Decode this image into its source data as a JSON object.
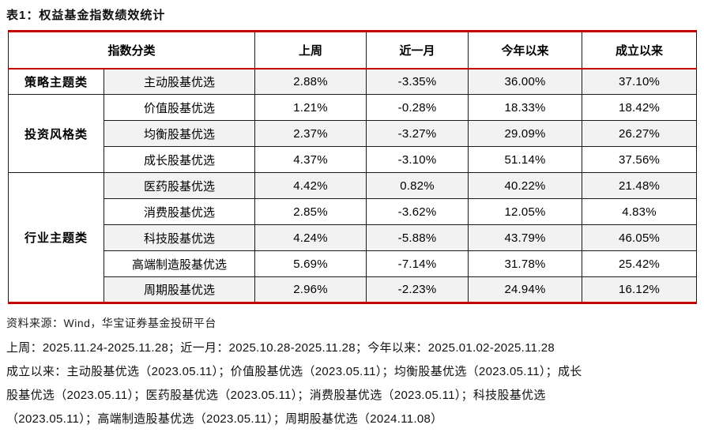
{
  "title": "表1：权益基金指数绩效统计",
  "colors": {
    "accent_red": "#C00000",
    "row_shade": "#F2F2F2",
    "border_black": "#1a1a1a"
  },
  "table": {
    "header": {
      "col_category": "指数分类",
      "col_week": "上周",
      "col_month": "近一月",
      "col_ytd": "今年以来",
      "col_inception": "成立以来"
    },
    "groups": [
      {
        "name": "策略主题类",
        "rows": [
          {
            "name": "主动股基优选",
            "week": "2.88%",
            "month": "-3.35%",
            "ytd": "36.00%",
            "inception": "37.10%"
          }
        ]
      },
      {
        "name": "投资风格类",
        "rows": [
          {
            "name": "价值股基优选",
            "week": "1.21%",
            "month": "-0.28%",
            "ytd": "18.33%",
            "inception": "18.42%"
          },
          {
            "name": "均衡股基优选",
            "week": "2.37%",
            "month": "-3.27%",
            "ytd": "29.09%",
            "inception": "26.27%"
          },
          {
            "name": "成长股基优选",
            "week": "4.37%",
            "month": "-3.10%",
            "ytd": "51.14%",
            "inception": "37.56%"
          }
        ]
      },
      {
        "name": "行业主题类",
        "rows": [
          {
            "name": "医药股基优选",
            "week": "4.42%",
            "month": "0.82%",
            "ytd": "40.22%",
            "inception": "21.48%"
          },
          {
            "name": "消费股基优选",
            "week": "2.85%",
            "month": "-3.62%",
            "ytd": "12.05%",
            "inception": "4.83%"
          },
          {
            "name": "科技股基优选",
            "week": "4.24%",
            "month": "-5.88%",
            "ytd": "43.79%",
            "inception": "46.05%"
          },
          {
            "name": "高端制造股基优选",
            "week": "5.69%",
            "month": "-7.14%",
            "ytd": "31.78%",
            "inception": "25.42%"
          },
          {
            "name": "周期股基优选",
            "week": "2.96%",
            "month": "-2.23%",
            "ytd": "24.94%",
            "inception": "16.12%"
          }
        ]
      }
    ]
  },
  "source": "资料来源：Wind，华宝证券基金投研平台",
  "notes": [
    "上周：2025.11.24-2025.11.28；近一月：2025.10.28-2025.11.28；今年以来：2025.01.02-2025.11.28",
    "成立以来：主动股基优选（2023.05.11）；价值股基优选（2023.05.11）；均衡股基优选（2023.05.11）；成长",
    "股基优选（2023.05.11）；医药股基优选（2023.05.11）；消费股基优选（2023.05.11）；科技股基优选",
    "（2023.05.11）；高端制造股基优选（2023.05.11）；周期股基优选（2024.11.08）"
  ]
}
